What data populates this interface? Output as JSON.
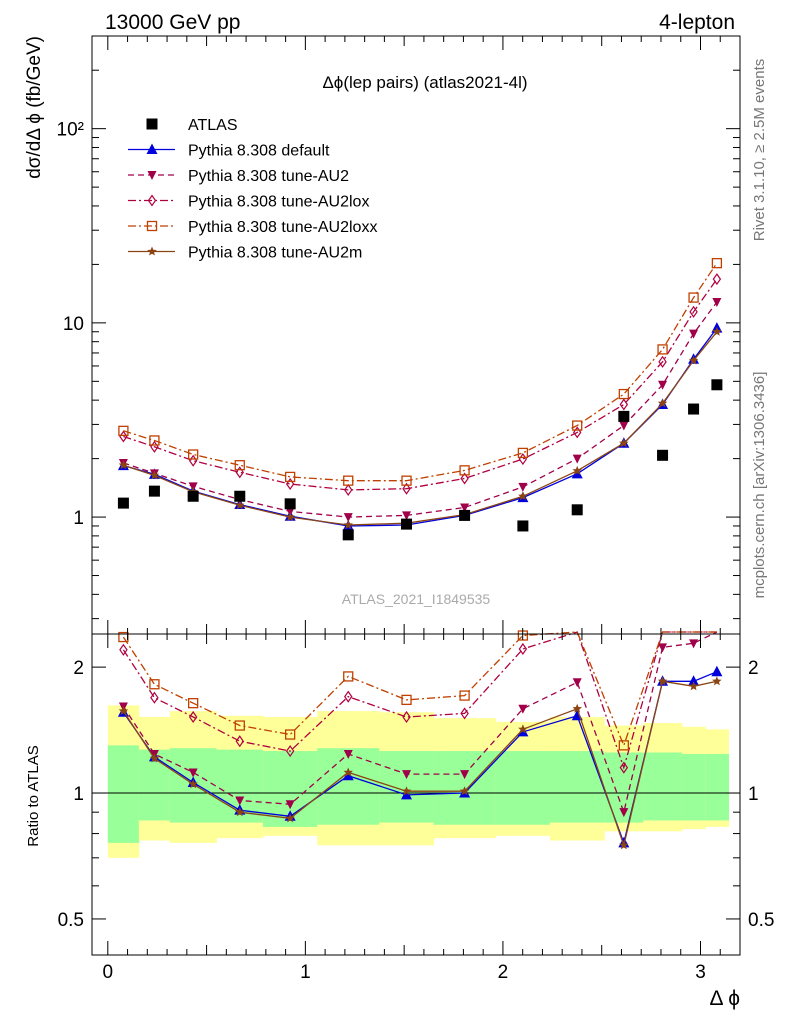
{
  "header": {
    "left": "13000 GeV pp",
    "right": "4-lepton"
  },
  "plot_title": "Δϕ(lep pairs) (atlas2021-4l)",
  "watermark": "ATLAS_2021_I1849535",
  "side_text_top": "Rivet 3.1.10, ≥ 2.5M events",
  "side_text_bottom": "mcplots.cern.ch [arXiv:1306.3436]",
  "axes": {
    "top_ylabel": "dσ/dΔ ϕ (fb/GeV)",
    "bottom_ylabel": "Ratio to ATLAS",
    "xlabel": "Δ ϕ",
    "top_yticks": [
      "1",
      "10",
      "10²"
    ],
    "bottom_yticks": [
      "0.5",
      "1",
      "2"
    ],
    "xticks": [
      "0",
      "1",
      "2",
      "3"
    ]
  },
  "chart_data": {
    "type": "line",
    "x_bins": [
      [
        0.0,
        0.157
      ],
      [
        0.157,
        0.314
      ],
      [
        0.314,
        0.55
      ],
      [
        0.55,
        0.785
      ],
      [
        0.785,
        1.06
      ],
      [
        1.06,
        1.374
      ],
      [
        1.374,
        1.649
      ],
      [
        1.649,
        1.963
      ],
      [
        1.963,
        2.238
      ],
      [
        2.238,
        2.513
      ],
      [
        2.513,
        2.71
      ],
      [
        2.71,
        2.906
      ],
      [
        2.906,
        3.024
      ],
      [
        3.024,
        3.142
      ]
    ],
    "x": [
      0.079,
      0.236,
      0.432,
      0.668,
      0.923,
      1.217,
      1.512,
      1.806,
      2.101,
      2.376,
      2.612,
      2.808,
      2.965,
      3.083
    ],
    "xlim": [
      -0.08,
      3.2
    ],
    "top_ylim": [
      0.25,
      300
    ],
    "top_yscale": "log",
    "bottom_ylim": [
      0.41,
      2.4
    ],
    "bottom_yscale": "log",
    "legend_position": "top-left",
    "series": [
      {
        "name": "ATLAS",
        "style": "data",
        "color": "#000000",
        "marker": "square",
        "values": [
          1.18,
          1.36,
          1.28,
          1.28,
          1.17,
          0.81,
          0.92,
          1.02,
          0.9,
          1.09,
          3.3,
          2.08,
          3.6,
          4.8
        ],
        "ratio": [
          1.56,
          1.22,
          1.06,
          0.91,
          0.88,
          1.1,
          0.99,
          1.0,
          1.4,
          1.53,
          0.76,
          1.85,
          1.85,
          1.95
        ]
      },
      {
        "name": "Pythia 8.308 default",
        "style": "solid",
        "color": "#0000dd",
        "marker": "triangle-up",
        "values": [
          1.84,
          1.66,
          1.36,
          1.16,
          1.01,
          0.9,
          0.91,
          1.02,
          1.26,
          1.67,
          2.4,
          3.8,
          6.5,
          9.4
        ],
        "ratio": [
          1.56,
          1.22,
          1.06,
          0.91,
          0.88,
          1.1,
          0.99,
          1.0,
          1.4,
          1.53,
          0.76,
          1.85,
          1.85,
          1.95
        ]
      },
      {
        "name": "Pythia 8.308 tune-AU2",
        "style": "dashed",
        "color": "#a0004a",
        "marker": "triangle-down",
        "values": [
          1.9,
          1.68,
          1.44,
          1.23,
          1.07,
          1.0,
          1.02,
          1.12,
          1.43,
          2.0,
          2.96,
          4.8,
          8.8,
          12.8
        ],
        "ratio": [
          1.61,
          1.24,
          1.12,
          0.96,
          0.94,
          1.24,
          1.11,
          1.11,
          1.59,
          1.84,
          0.9,
          2.23,
          2.28,
          2.48
        ]
      },
      {
        "name": "Pythia 8.308 tune-AU2lox",
        "style": "dashdot",
        "color": "#b00040",
        "marker": "diamond-open",
        "values": [
          2.6,
          2.3,
          1.95,
          1.7,
          1.48,
          1.38,
          1.4,
          1.58,
          1.99,
          2.73,
          3.8,
          6.3,
          11.4,
          16.8
        ],
        "ratio": [
          2.2,
          1.69,
          1.52,
          1.33,
          1.26,
          1.7,
          1.52,
          1.55,
          2.21,
          2.5,
          1.15,
          3.03,
          3.17,
          3.5
        ]
      },
      {
        "name": "Pythia 8.308 tune-AU2loxx",
        "style": "dashdot",
        "color": "#c04000",
        "marker": "square-open",
        "values": [
          2.78,
          2.48,
          2.1,
          1.85,
          1.61,
          1.54,
          1.54,
          1.74,
          2.14,
          2.96,
          4.3,
          7.3,
          13.5,
          20.3
        ],
        "ratio": [
          2.36,
          1.82,
          1.64,
          1.45,
          1.38,
          1.9,
          1.67,
          1.71,
          2.38,
          2.72,
          1.3,
          3.51,
          3.75,
          4.23
        ]
      },
      {
        "name": "Pythia 8.308 tune-AU2m",
        "style": "solid",
        "color": "#8b4513",
        "marker": "star",
        "values": [
          1.85,
          1.64,
          1.35,
          1.15,
          1.0,
          0.91,
          0.93,
          1.03,
          1.28,
          1.73,
          2.4,
          3.85,
          6.4,
          9.0
        ],
        "ratio": [
          1.57,
          1.21,
          1.05,
          0.9,
          0.87,
          1.12,
          1.01,
          1.01,
          1.42,
          1.59,
          0.75,
          1.85,
          1.8,
          1.85
        ]
      }
    ],
    "bands": {
      "yellow_low": [
        0.7,
        0.77,
        0.76,
        0.78,
        0.79,
        0.75,
        0.75,
        0.78,
        0.79,
        0.77,
        0.81,
        0.81,
        0.82,
        0.83
      ],
      "yellow_high": [
        1.62,
        1.52,
        1.57,
        1.53,
        1.52,
        1.57,
        1.56,
        1.51,
        1.48,
        1.52,
        1.45,
        1.47,
        1.44,
        1.42
      ],
      "green_low": [
        0.76,
        0.86,
        0.85,
        0.85,
        0.83,
        0.84,
        0.85,
        0.84,
        0.84,
        0.85,
        0.85,
        0.86,
        0.86,
        0.86
      ],
      "green_high": [
        1.3,
        1.27,
        1.28,
        1.27,
        1.26,
        1.28,
        1.26,
        1.26,
        1.26,
        1.26,
        1.25,
        1.25,
        1.24,
        1.24
      ],
      "yellow_color": "#ffff99",
      "green_color": "#99ff99"
    }
  }
}
